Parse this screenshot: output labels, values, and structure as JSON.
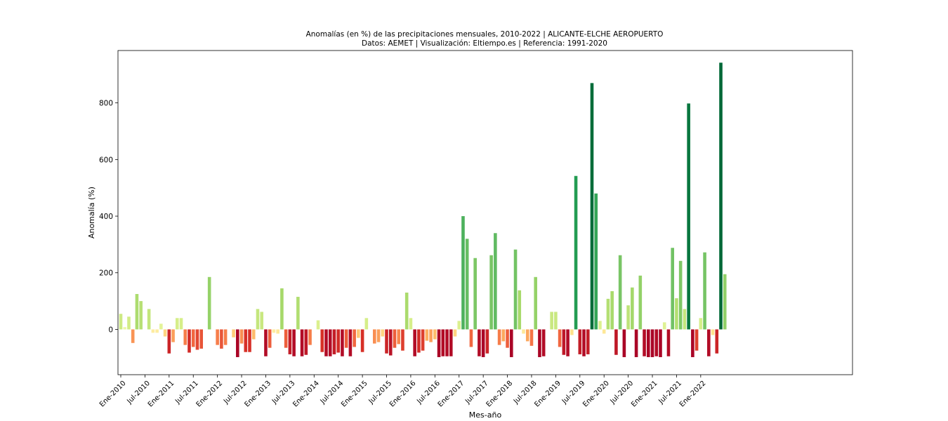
{
  "chart_data": {
    "type": "bar",
    "title": "Anomalías (en %) de las precipitaciones mensuales, 2010-2022 | ALICANTE-ELCHE AEROPUERTO",
    "subtitle": "Datos: AEMET | Visualización: Eltiempo.es | Referencia: 1991-2020",
    "xlabel": "Mes-año",
    "ylabel": "Anomalía (%)",
    "ylim": [
      -160,
      985
    ],
    "yticks": [
      0,
      200,
      400,
      600,
      800
    ],
    "ytick_labels": [
      "0",
      "200",
      "400",
      "600",
      "800"
    ],
    "x_tick_labels": [
      "Ene-2010",
      "Jul-2010",
      "Ene-2011",
      "Jul-2011",
      "Ene-2012",
      "Jul-2012",
      "Ene-2013",
      "Jul-2013",
      "Ene-2014",
      "Jul-2014",
      "Ene-2015",
      "Jul-2015",
      "Ene-2016",
      "Jul-2016",
      "Ene-2017",
      "Jul-2017",
      "Ene-2018",
      "Jul-2018",
      "Ene-2019",
      "Jul-2019",
      "Ene-2020",
      "Jul-2020",
      "Ene-2021",
      "Jul-2021",
      "Ene-2022"
    ],
    "x_tick_positions": [
      0,
      6,
      12,
      18,
      24,
      30,
      36,
      42,
      48,
      54,
      60,
      66,
      72,
      78,
      84,
      90,
      96,
      102,
      108,
      114,
      120,
      126,
      132,
      138,
      144
    ],
    "grid": false,
    "values": [
      55,
      8,
      45,
      -48,
      125,
      100,
      0,
      72,
      -12,
      -12,
      20,
      -25,
      -85,
      -45,
      40,
      40,
      -55,
      -82,
      -62,
      -72,
      -68,
      0,
      185,
      0,
      -55,
      -68,
      -55,
      0,
      -28,
      -98,
      -50,
      -80,
      -80,
      -35,
      72,
      62,
      -95,
      -65,
      -12,
      -15,
      145,
      -65,
      -88,
      -95,
      115,
      -95,
      -90,
      -55,
      0,
      32,
      -80,
      -95,
      -95,
      -88,
      -82,
      -95,
      -65,
      -95,
      -62,
      -30,
      -80,
      40,
      0,
      -50,
      -45,
      -25,
      -85,
      -92,
      -65,
      -52,
      -75,
      130,
      40,
      -95,
      -82,
      -75,
      -40,
      -45,
      -35,
      -98,
      -95,
      -95,
      -95,
      -25,
      30,
      400,
      320,
      -62,
      252,
      -95,
      -98,
      -85,
      262,
      340,
      -55,
      -42,
      -65,
      -98,
      282,
      138,
      -15,
      -42,
      -58,
      185,
      -98,
      -95,
      0,
      62,
      62,
      -62,
      -90,
      -95,
      -20,
      542,
      -88,
      -95,
      -88,
      870,
      480,
      30,
      -15,
      108,
      135,
      -90,
      262,
      -98,
      85,
      148,
      -98,
      190,
      -95,
      -98,
      -98,
      -95,
      -98,
      25,
      -95,
      288,
      110,
      242,
      72,
      798,
      -98,
      -75,
      40,
      272,
      -95,
      -20,
      -85,
      942,
      195
    ],
    "colormap": "RdYlGn",
    "color_range": [
      -100,
      900
    ]
  }
}
